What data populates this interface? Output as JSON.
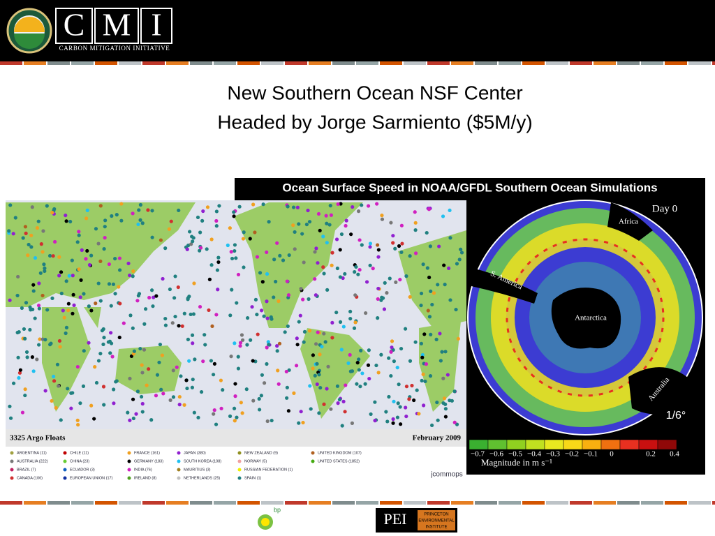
{
  "header": {
    "logo_letters": [
      "C",
      "M",
      "I"
    ],
    "logo_subtitle": "Carbon Mitigation Initiative"
  },
  "slide": {
    "title_lines": [
      "New Southern Ocean NSF Center",
      "Headed by Jorge Sarmiento  ($5M/y)"
    ]
  },
  "ocean_image": {
    "title": "Ocean Surface Speed in NOAA/GFDL Southern Ocean Simulations",
    "day": "Day  0",
    "labels": [
      "Africa",
      "S. America",
      "Antarctica",
      "Australia"
    ],
    "resolution": "1/6°",
    "colorbar_ticks": [
      "−0.7",
      "−0.6",
      "−0.5",
      "−0.4",
      "−0.3",
      "−0.2",
      "−0.1",
      "0",
      "0.2",
      "0.4"
    ],
    "colorbar_caption": "Magnitude in m s⁻¹"
  },
  "argo_image": {
    "caption_left": "3325 Argo Floats",
    "caption_right": "February 2009",
    "legend": [
      {
        "label": "ARGENTINA (11)",
        "color": "#a0a040"
      },
      {
        "label": "AUSTRALIA (222)",
        "color": "#777777"
      },
      {
        "label": "BRAZIL (7)",
        "color": "#c02060"
      },
      {
        "label": "CANADA (106)",
        "color": "#d03030"
      },
      {
        "label": "CHILE (11)",
        "color": "#c00000"
      },
      {
        "label": "CHINA (23)",
        "color": "#66cc33"
      },
      {
        "label": "ECUADOR (3)",
        "color": "#1060c0"
      },
      {
        "label": "EUROPEAN UNION (17)",
        "color": "#1030a0"
      },
      {
        "label": "FRANCE (161)",
        "color": "#f0a020"
      },
      {
        "label": "GERMANY (183)",
        "color": "#000000"
      },
      {
        "label": "INDIA (76)",
        "color": "#d020c0"
      },
      {
        "label": "IRELAND (8)",
        "color": "#50a020"
      },
      {
        "label": "JAPAN (380)",
        "color": "#9020d0"
      },
      {
        "label": "SOUTH KOREA (108)",
        "color": "#20c0f0"
      },
      {
        "label": "MAURITIUS (3)",
        "color": "#a08020"
      },
      {
        "label": "NETHERLANDS (25)",
        "color": "#c0c0c0"
      },
      {
        "label": "NEW ZEALAND (9)",
        "color": "#909020"
      },
      {
        "label": "NORWAY (5)",
        "color": "#f0a0a0"
      },
      {
        "label": "RUSSIAN FEDERATION (1)",
        "color": "#f0f000"
      },
      {
        "label": "SPAIN (1)",
        "color": "#208080"
      },
      {
        "label": "UNITED KINGDOM (107)",
        "color": "#b06020"
      },
      {
        "label": "UNITED STATES (1852)",
        "color": "#44aa10"
      }
    ],
    "credit": "jcommops"
  },
  "footer": {
    "bp": "bp",
    "pei": "PEI",
    "pei_full": [
      "PRINCETON",
      "ENVIRONMENTAL",
      "INSTITUTE"
    ]
  }
}
